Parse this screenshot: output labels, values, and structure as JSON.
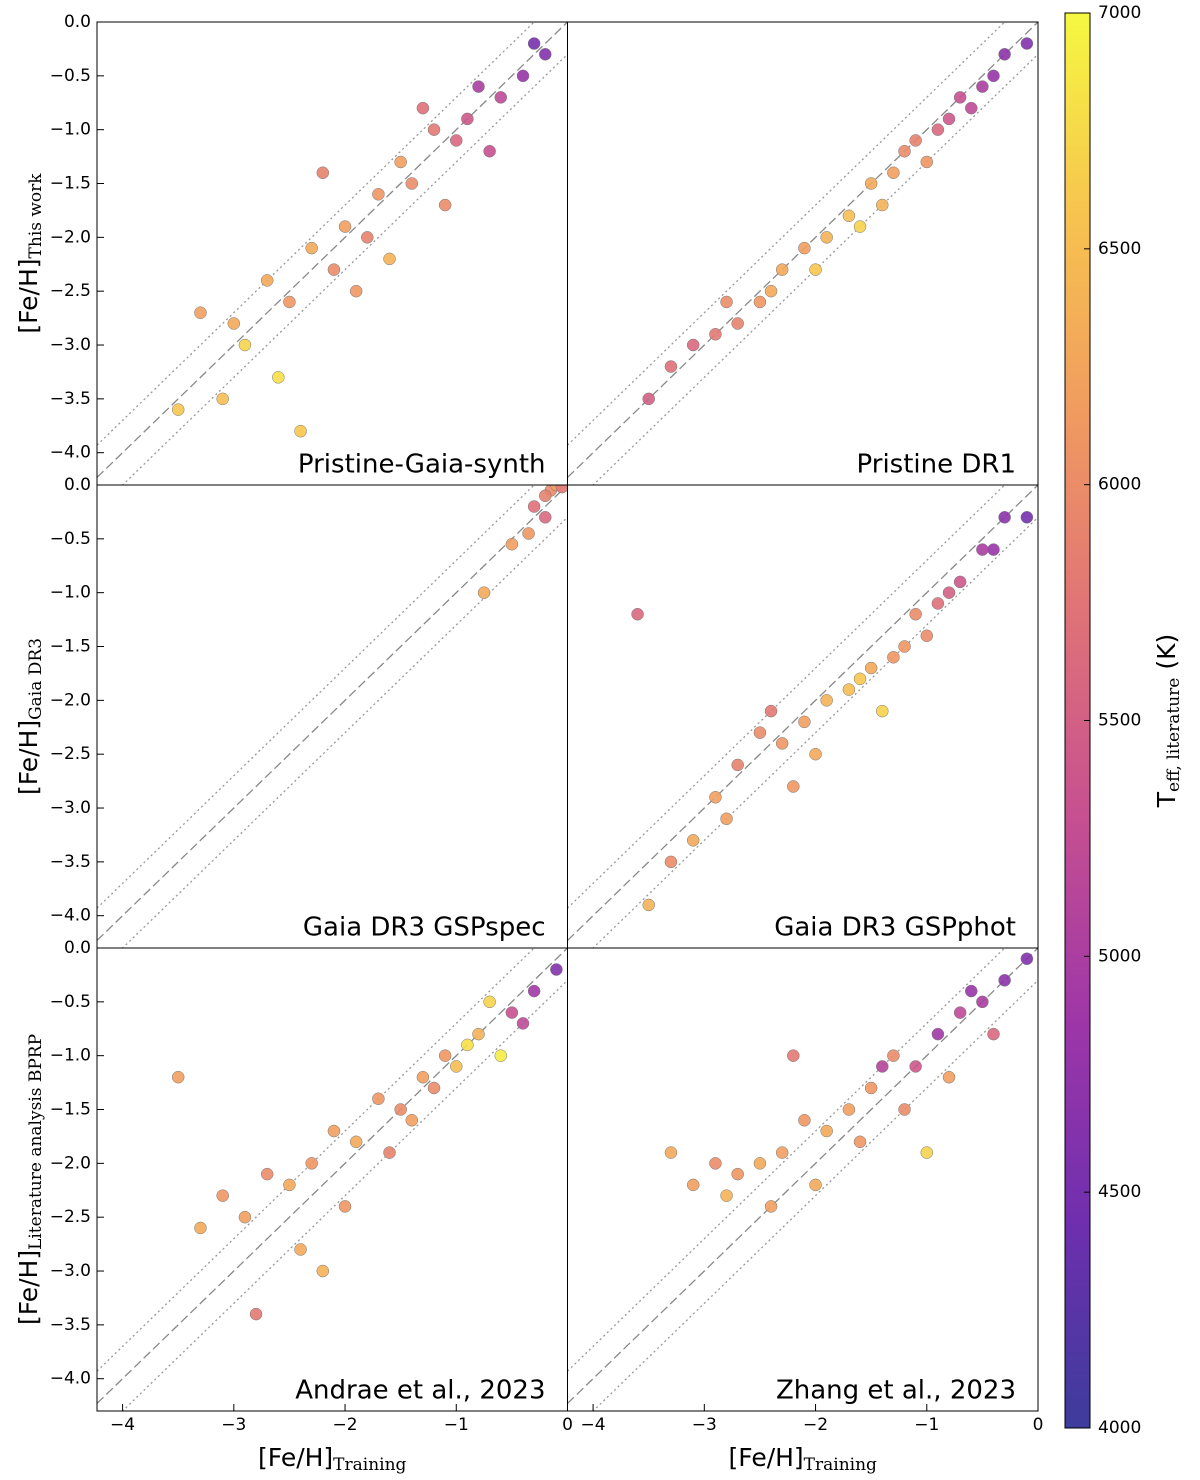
{
  "chart_data": [
    {
      "type": "scatter",
      "annotation": "Pristine-Gaia-synth",
      "ylabel": "[Fe/H]",
      "ylabel_sub": "This work",
      "xlim": [
        -4.23,
        0
      ],
      "ylim": [
        -4.3,
        0
      ],
      "yticks": [
        {
          "value": 0,
          "label": "0.0"
        },
        {
          "value": -0.5,
          "label": "−0.5"
        },
        {
          "value": -1,
          "label": "−1.0"
        },
        {
          "value": -1.5,
          "label": "−1.5"
        },
        {
          "value": -2,
          "label": "−2.0"
        },
        {
          "value": -2.5,
          "label": "−2.5"
        },
        {
          "value": -3,
          "label": "−3.0"
        },
        {
          "value": -3.5,
          "label": "−3.5"
        },
        {
          "value": -4,
          "label": "−4.0"
        }
      ],
      "x": [
        -0.2,
        -0.4,
        -0.6,
        -0.8,
        -1.0,
        -1.2,
        -1.4,
        -1.5,
        -1.7,
        -1.8,
        -2.0,
        -2.1,
        -2.3,
        -2.5,
        -2.7,
        -2.9,
        -3.1,
        -3.3,
        -3.5,
        -2.2,
        -1.6,
        -0.9,
        -0.3,
        -1.1,
        -2.6,
        -3.0,
        -2.4,
        -1.3,
        -0.7,
        -1.9
      ],
      "values": [
        -0.3,
        -0.5,
        -0.7,
        -0.6,
        -1.1,
        -1.0,
        -1.5,
        -1.3,
        -1.6,
        -2.0,
        -1.9,
        -2.3,
        -2.1,
        -2.6,
        -2.4,
        -3.0,
        -3.5,
        -2.7,
        -3.6,
        -1.4,
        -2.2,
        -0.9,
        -0.2,
        -1.7,
        -3.3,
        -2.8,
        -3.8,
        -0.8,
        -1.2,
        -2.5
      ],
      "color_values": [
        4600,
        4800,
        5200,
        5000,
        5600,
        5800,
        6000,
        6200,
        6100,
        5900,
        6200,
        6000,
        6300,
        6100,
        6300,
        6700,
        6500,
        6200,
        6600,
        5900,
        6400,
        5400,
        4500,
        6000,
        6800,
        6300,
        6600,
        5700,
        5300,
        6100
      ]
    },
    {
      "type": "scatter",
      "annotation": "Pristine DR1",
      "xlim": [
        -4.23,
        0
      ],
      "ylim": [
        -4.3,
        0
      ],
      "x": [
        -0.1,
        -0.3,
        -0.5,
        -0.7,
        -0.9,
        -1.1,
        -1.3,
        -1.5,
        -1.7,
        -1.9,
        -2.1,
        -2.3,
        -2.5,
        -2.7,
        -2.9,
        -3.1,
        -3.3,
        -3.5,
        -0.4,
        -0.8,
        -1.2,
        -1.6,
        -2.0,
        -2.4,
        -2.8,
        -1.0,
        -0.6,
        -1.4
      ],
      "values": [
        -0.2,
        -0.3,
        -0.6,
        -0.7,
        -1.0,
        -1.1,
        -1.4,
        -1.5,
        -1.8,
        -2.0,
        -2.1,
        -2.3,
        -2.6,
        -2.8,
        -2.9,
        -3.0,
        -3.2,
        -3.5,
        -0.5,
        -0.9,
        -1.2,
        -1.9,
        -2.3,
        -2.5,
        -2.6,
        -1.3,
        -0.8,
        -1.7
      ],
      "color_values": [
        4600,
        4700,
        5000,
        5300,
        5600,
        5900,
        6200,
        6300,
        6500,
        6400,
        6200,
        6300,
        6100,
        5900,
        5800,
        5600,
        5700,
        5500,
        4800,
        5400,
        6000,
        6700,
        6600,
        6300,
        6000,
        6100,
        5200,
        6400
      ]
    },
    {
      "type": "scatter",
      "annotation": "Gaia DR3 GSPspec",
      "ylabel": "[Fe/H]",
      "ylabel_sub": "Gaia DR3",
      "xlim": [
        -4.23,
        0
      ],
      "ylim": [
        -4.3,
        0
      ],
      "yticks": [
        {
          "value": 0,
          "label": "0.0"
        },
        {
          "value": -0.5,
          "label": "−0.5"
        },
        {
          "value": -1,
          "label": "−1.0"
        },
        {
          "value": -1.5,
          "label": "−1.5"
        },
        {
          "value": -2,
          "label": "−2.0"
        },
        {
          "value": -2.5,
          "label": "−2.5"
        },
        {
          "value": -3,
          "label": "−3.0"
        },
        {
          "value": -3.5,
          "label": "−3.5"
        },
        {
          "value": -4,
          "label": "−4.0"
        }
      ],
      "x": [
        -0.15,
        -0.1,
        -0.05,
        -0.2,
        -0.35,
        -0.5,
        -0.75,
        -0.3,
        -0.2
      ],
      "values": [
        -0.05,
        0,
        -0.02,
        -0.1,
        -0.45,
        -0.55,
        -1.0,
        -0.2,
        -0.3
      ],
      "color_values": [
        6000,
        6200,
        5800,
        5900,
        6100,
        6200,
        6300,
        5700,
        5600
      ]
    },
    {
      "type": "scatter",
      "annotation": "Gaia DR3 GSPphot",
      "xlim": [
        -4.23,
        0
      ],
      "ylim": [
        -4.3,
        0
      ],
      "x": [
        -0.1,
        -0.3,
        -0.5,
        -0.7,
        -0.9,
        -1.1,
        -1.3,
        -1.5,
        -1.7,
        -1.9,
        -2.1,
        -2.3,
        -2.5,
        -2.7,
        -2.9,
        -3.1,
        -3.3,
        -3.5,
        -0.4,
        -0.8,
        -1.2,
        -1.6,
        -2.0,
        -2.4,
        -2.8,
        -1.0,
        -3.6,
        -1.4,
        -2.2
      ],
      "values": [
        -0.3,
        -0.3,
        -0.6,
        -0.9,
        -1.1,
        -1.2,
        -1.6,
        -1.7,
        -1.9,
        -2.0,
        -2.2,
        -2.4,
        -2.3,
        -2.6,
        -2.9,
        -3.3,
        -3.5,
        -3.9,
        -0.6,
        -1.0,
        -1.5,
        -1.8,
        -2.5,
        -2.1,
        -3.1,
        -1.4,
        -1.2,
        -2.1,
        -2.8
      ],
      "color_values": [
        4500,
        4700,
        5000,
        5400,
        5700,
        6000,
        6100,
        6300,
        6500,
        6400,
        6200,
        6100,
        6000,
        5900,
        6200,
        6300,
        6000,
        6400,
        4800,
        5500,
        6100,
        6600,
        6300,
        5800,
        6200,
        6000,
        5600,
        6700,
        6100
      ]
    },
    {
      "type": "scatter",
      "annotation": "Andrae et al., 2023",
      "ylabel": "[Fe/H]",
      "ylabel_sub": "Literature analysis BPRP",
      "xlabel": "[Fe/H]",
      "xlabel_sub": "Training",
      "xlim": [
        -4.23,
        0
      ],
      "ylim": [
        -4.3,
        0
      ],
      "xticks": [
        {
          "value": -4,
          "label": "−4"
        },
        {
          "value": -3,
          "label": "−3"
        },
        {
          "value": -2,
          "label": "−2"
        },
        {
          "value": -1,
          "label": "−1"
        },
        0
      ],
      "yticks": [
        {
          "value": 0,
          "label": "0.0"
        },
        {
          "value": -0.5,
          "label": "−0.5"
        },
        {
          "value": -1,
          "label": "−1.0"
        },
        {
          "value": -1.5,
          "label": "−1.5"
        },
        {
          "value": -2,
          "label": "−2.0"
        },
        {
          "value": -2.5,
          "label": "−2.5"
        },
        {
          "value": -3,
          "label": "−3.0"
        },
        {
          "value": -3.5,
          "label": "−3.5"
        },
        {
          "value": -4,
          "label": "−4.0"
        }
      ],
      "x": [
        -0.1,
        -0.3,
        -0.5,
        -0.7,
        -0.9,
        -1.1,
        -1.3,
        -1.5,
        -1.7,
        -1.9,
        -2.1,
        -2.3,
        -2.5,
        -2.7,
        -2.9,
        -3.1,
        -3.3,
        -3.5,
        -0.4,
        -0.8,
        -1.2,
        -1.6,
        -2.0,
        -2.4,
        -2.8,
        -1.0,
        -0.6,
        -1.4,
        -2.2
      ],
      "values": [
        -0.2,
        -0.4,
        -0.6,
        -0.5,
        -0.9,
        -1.0,
        -1.2,
        -1.5,
        -1.4,
        -1.8,
        -1.7,
        -2.0,
        -2.2,
        -2.1,
        -2.5,
        -2.3,
        -2.6,
        -1.2,
        -0.7,
        -0.8,
        -1.3,
        -1.9,
        -2.4,
        -2.8,
        -3.4,
        -1.1,
        -1.0,
        -1.6,
        -3.0
      ],
      "color_values": [
        4600,
        4900,
        5300,
        6700,
        6800,
        6100,
        6200,
        6000,
        6100,
        6300,
        6200,
        6100,
        6300,
        6000,
        6200,
        6100,
        6300,
        6200,
        5200,
        6400,
        6000,
        5900,
        6100,
        6300,
        5800,
        6500,
        6900,
        6200,
        6400
      ]
    },
    {
      "type": "scatter",
      "annotation": "Zhang et al., 2023",
      "xlabel": "[Fe/H]",
      "xlabel_sub": "Training",
      "xlim": [
        -4.23,
        0
      ],
      "ylim": [
        -4.3,
        0
      ],
      "xticks": [
        {
          "value": -4,
          "label": "−4"
        },
        {
          "value": -3,
          "label": "−3"
        },
        {
          "value": -2,
          "label": "−2"
        },
        {
          "value": -1,
          "label": "−1"
        },
        0
      ],
      "x": [
        -0.1,
        -0.3,
        -0.5,
        -0.7,
        -0.9,
        -1.1,
        -1.3,
        -1.5,
        -1.7,
        -1.9,
        -2.1,
        -2.3,
        -2.5,
        -2.7,
        -2.9,
        -3.1,
        -3.3,
        -0.4,
        -0.8,
        -1.2,
        -1.6,
        -2.0,
        -2.4,
        -2.8,
        -1.0,
        -0.6,
        -1.4,
        -2.2
      ],
      "values": [
        -0.1,
        -0.3,
        -0.5,
        -0.6,
        -0.8,
        -1.1,
        -1.0,
        -1.3,
        -1.5,
        -1.7,
        -1.6,
        -1.9,
        -2.0,
        -2.1,
        -2.0,
        -2.2,
        -1.9,
        -0.8,
        -1.2,
        -1.5,
        -1.8,
        -2.2,
        -2.4,
        -2.3,
        -1.9,
        -0.4,
        -1.1,
        -1.0
      ],
      "color_values": [
        4600,
        4700,
        5000,
        5200,
        4900,
        5400,
        6000,
        6100,
        6200,
        6300,
        6100,
        6200,
        6300,
        6100,
        6000,
        6200,
        6300,
        5600,
        6200,
        6000,
        6100,
        6300,
        6200,
        6400,
        6700,
        4800,
        5100,
        5800
      ]
    }
  ],
  "reference_lines": [
    {
      "offset": 0,
      "style": "dashed"
    },
    {
      "offset": 0.3,
      "style": "dotted"
    },
    {
      "offset": -0.3,
      "style": "dotted"
    }
  ],
  "colorbar": {
    "label": "T",
    "label_sub": "eff, literature",
    "label_suffix": "(K)",
    "lim": [
      4000,
      7000
    ],
    "ticks": [
      4000,
      4500,
      5000,
      5500,
      6000,
      6500,
      7000
    ],
    "colormap": [
      "#3d3c9c",
      "#6e2fae",
      "#9d36a8",
      "#c54f91",
      "#df7178",
      "#f09a60",
      "#f7c34f",
      "#f5f841"
    ]
  }
}
